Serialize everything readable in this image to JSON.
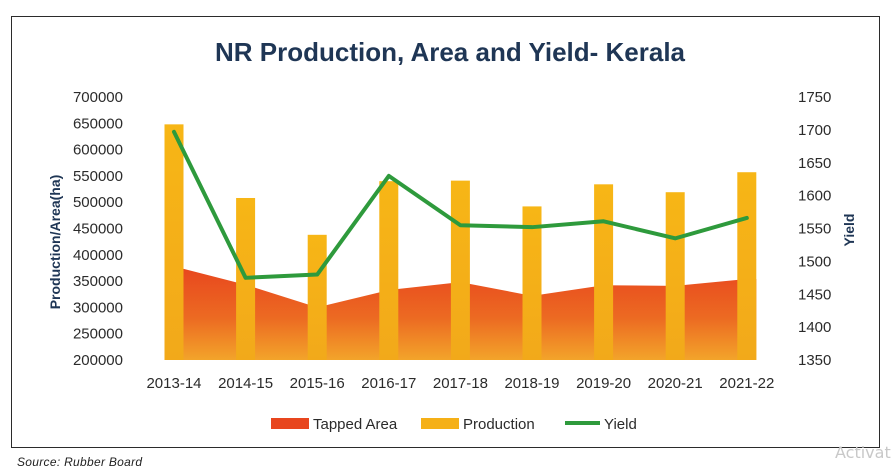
{
  "chart_data": {
    "type": "bar",
    "title": "NR Production, Area and Yield- Kerala",
    "categories": [
      "2013-14",
      "2014-15",
      "2015-16",
      "2016-17",
      "2017-18",
      "2018-19",
      "2019-20",
      "2020-21",
      "2021-22"
    ],
    "y_left": {
      "label": "Production/Area(ha)",
      "min": 200000,
      "max": 700000,
      "ticks": [
        "700000",
        "650000",
        "600000",
        "550000",
        "500000",
        "450000",
        "400000",
        "350000",
        "300000",
        "250000",
        "200000"
      ]
    },
    "y_right": {
      "label": "Yield",
      "min": 1350,
      "max": 1750,
      "ticks": [
        "1750",
        "1700",
        "1650",
        "1600",
        "1550",
        "1500",
        "1450",
        "1400",
        "1350"
      ]
    },
    "series": [
      {
        "name": "Tapped Area",
        "type": "area",
        "axis": "left",
        "color": "#e8461e",
        "values": [
          378000,
          343000,
          300000,
          333000,
          348000,
          322000,
          342000,
          341000,
          354000
        ]
      },
      {
        "name": "Production",
        "type": "bar",
        "axis": "left",
        "color": "#f5b017",
        "values": [
          648000,
          508000,
          438000,
          540000,
          541000,
          492000,
          534000,
          519000,
          557000
        ]
      },
      {
        "name": "Yield",
        "type": "line",
        "axis": "right",
        "color": "#2e9a3c",
        "values": [
          1697,
          1475,
          1480,
          1630,
          1555,
          1552,
          1561,
          1535,
          1566
        ]
      }
    ],
    "legend_position": "bottom",
    "grid": false
  },
  "source_text": "Source:  Rubber  Board",
  "watermark_text": "Activat"
}
